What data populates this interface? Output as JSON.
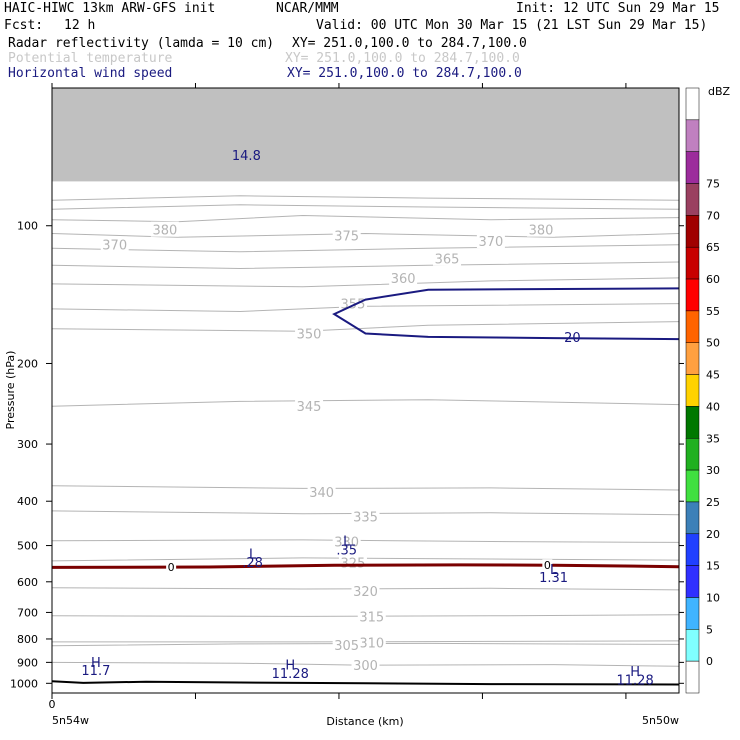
{
  "header": {
    "model": "HAIC-HIWC 13km ARW-GFS init",
    "org": "NCAR/MMM",
    "init": "Init: 12 UTC Sun 29 Mar 15",
    "fcst_label": "Fcst:",
    "fcst_value": "12 h",
    "valid": "Valid: 00 UTC Mon 30 Mar 15 (21 LST Sun 29 Mar 15)",
    "fields": [
      {
        "name": "Radar reflectivity (lamda = 10 cm)",
        "xy": "XY= 251.0,100.0 to 284.7,100.0"
      },
      {
        "name": "Potential temperature",
        "xy": "XY= 251.0,100.0 to 284.7,100.0"
      },
      {
        "name": "Horizontal wind speed",
        "xy": "XY= 251.0,100.0 to 284.7,100.0"
      }
    ]
  },
  "colors": {
    "potential_temperature": "#b4b4b4",
    "wind_speed": "#1a1a80",
    "freezing_level": "#7a0000",
    "terrain": "#000000",
    "model_top_shading": "#c0c0c0"
  },
  "chart_data": {
    "type": "contour",
    "xlabel": "Distance (km)",
    "ylabel": "Pressure (hPa)",
    "x_start_label": "0",
    "x_left_label": "5n54w",
    "x_right_label": "5n50w",
    "ylim": [
      1050,
      50
    ],
    "y_scale": "log",
    "yticks": [
      100,
      200,
      300,
      400,
      500,
      600,
      700,
      800,
      900,
      1000
    ],
    "potential_temperature_labels": [
      {
        "text": "380",
        "x": 0.18,
        "p": 102
      },
      {
        "text": "370",
        "x": 0.1,
        "p": 110
      },
      {
        "text": "375",
        "x": 0.47,
        "p": 105
      },
      {
        "text": "380",
        "x": 0.78,
        "p": 102
      },
      {
        "text": "370",
        "x": 0.7,
        "p": 108
      },
      {
        "text": "365",
        "x": 0.63,
        "p": 118
      },
      {
        "text": "360",
        "x": 0.56,
        "p": 130
      },
      {
        "text": "355",
        "x": 0.48,
        "p": 148
      },
      {
        "text": "350",
        "x": 0.41,
        "p": 172
      },
      {
        "text": "345",
        "x": 0.41,
        "p": 248
      },
      {
        "text": "340",
        "x": 0.43,
        "p": 382
      },
      {
        "text": "335",
        "x": 0.5,
        "p": 432
      },
      {
        "text": "330",
        "x": 0.47,
        "p": 490
      },
      {
        "text": "325",
        "x": 0.48,
        "p": 545
      },
      {
        "text": "320",
        "x": 0.5,
        "p": 628
      },
      {
        "text": "315",
        "x": 0.51,
        "p": 715
      },
      {
        "text": "310",
        "x": 0.51,
        "p": 815
      },
      {
        "text": "305",
        "x": 0.47,
        "p": 825
      },
      {
        "text": "300",
        "x": 0.5,
        "p": 913
      }
    ],
    "wind_speed_labels": [
      {
        "text": "14.8",
        "x": 0.31,
        "p": 70
      },
      {
        "text": "20",
        "x": 0.83,
        "p": 175
      },
      {
        "text": "L",
        "x": 0.32,
        "p": 520
      },
      {
        "text": ".28",
        "x": 0.32,
        "p": 543
      },
      {
        "text": "L",
        "x": 0.47,
        "p": 488
      },
      {
        "text": ".35",
        "x": 0.47,
        "p": 510
      },
      {
        "text": "L",
        "x": 0.8,
        "p": 562
      },
      {
        "text": "1.31",
        "x": 0.8,
        "p": 585
      },
      {
        "text": "H",
        "x": 0.07,
        "p": 898
      },
      {
        "text": "11.7",
        "x": 0.07,
        "p": 935
      },
      {
        "text": "H",
        "x": 0.38,
        "p": 910
      },
      {
        "text": "11.28",
        "x": 0.38,
        "p": 950
      },
      {
        "text": "H",
        "x": 0.93,
        "p": 940
      },
      {
        "text": "11.28",
        "x": 0.93,
        "p": 980
      }
    ],
    "freezing_level_labels": [
      {
        "text": "0",
        "x": 0.19,
        "p": 557
      },
      {
        "text": "0",
        "x": 0.79,
        "p": 552
      }
    ],
    "colorbar": {
      "unit": "dBZ",
      "levels": [
        "0",
        "5",
        "10",
        "15",
        "20",
        "25",
        "30",
        "35",
        "40",
        "45",
        "50",
        "55",
        "60",
        "65",
        "70",
        "75"
      ],
      "colors": [
        "#ffffff",
        "#80ffff",
        "#40b4ff",
        "#3030ff",
        "#2040ff",
        "#3c80b8",
        "#40e040",
        "#20b020",
        "#007800",
        "#ffd200",
        "#ffa040",
        "#ff6400",
        "#ff0000",
        "#c80000",
        "#a00000",
        "#9a4060",
        "#9c2c9c",
        "#c080c0",
        "#ffffff"
      ]
    }
  }
}
